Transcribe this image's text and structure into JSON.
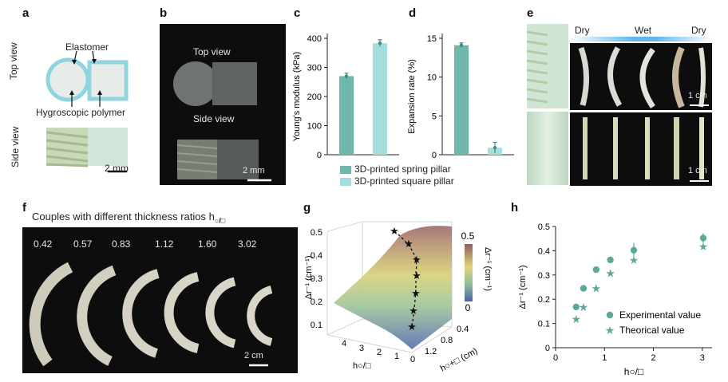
{
  "panels": {
    "a": "a",
    "b": "b",
    "c": "c",
    "d": "d",
    "e": "e",
    "f": "f",
    "g": "g",
    "h": "h"
  },
  "panel_a": {
    "elastomer": "Elastomer",
    "hygroscopic": "Hygroscopic polymer",
    "top_view": "Top view",
    "side_view": "Side view",
    "scale": "2 mm"
  },
  "panel_b": {
    "top_view": "Top view",
    "side_view": "Side view",
    "scale": "2 mm"
  },
  "panel_e": {
    "dry1": "Dry",
    "wet": "Wet",
    "dry2": "Dry",
    "scale_top": "1 cm",
    "scale_bottom": "1 cm"
  },
  "panel_f": {
    "title": "Couples with different thickness ratios h",
    "subscript": "○/□",
    "ratios": [
      "0.42",
      "0.57",
      "0.83",
      "1.12",
      "1.60",
      "3.02"
    ],
    "scale": "2 cm"
  },
  "legend_cd": {
    "spring": "3D-printed spring pillar",
    "square": "3D-printed square pillar"
  },
  "colors": {
    "spring": "#6fb6ac",
    "square": "#a6dcdb",
    "wet": "#5fb8ea",
    "teal": "#5ea89b"
  },
  "chart_data": [
    {
      "id": "c",
      "type": "bar",
      "categories": [
        "3D-printed spring pillar",
        "3D-printed square pillar"
      ],
      "values": [
        270,
        383
      ],
      "errors": [
        10,
        12
      ],
      "ylabel": "Young's modulus (kPa)",
      "ylim": [
        0,
        400
      ],
      "yticks": [
        "0",
        "100",
        "200",
        "300",
        "400"
      ]
    },
    {
      "id": "d",
      "type": "bar",
      "categories": [
        "3D-printed spring pillar",
        "3D-printed square pillar"
      ],
      "values": [
        14.1,
        0.9
      ],
      "errors": [
        0.3,
        0.7
      ],
      "ylabel": "Expansion rate (%)",
      "ylim": [
        0,
        15
      ],
      "yticks": [
        "0",
        "5",
        "10",
        "15"
      ]
    },
    {
      "id": "g",
      "type": "surface",
      "zlabel": "Δr⁻¹ (cm⁻¹)",
      "zticks": [
        "0.1",
        "0.2",
        "0.3",
        "0.4",
        "0.5"
      ],
      "xlabel": "h○/□",
      "xticks": [
        "4",
        "3",
        "2",
        "1",
        "0"
      ],
      "ylabel": "h○+□ (cm)",
      "yticks": [
        "0.4",
        "0.8",
        "1.2"
      ],
      "colorbar_label": "Δr⁻¹ (cm⁻¹)",
      "colorbar_ticks": [
        "0.5",
        "0"
      ]
    },
    {
      "id": "h",
      "type": "scatter",
      "xlabel": "h○/□",
      "ylabel": "Δr⁻¹ (cm⁻¹)",
      "xlim": [
        0,
        3.2
      ],
      "ylim": [
        0,
        0.5
      ],
      "xticks": [
        "0",
        "1",
        "2",
        "3"
      ],
      "yticks": [
        "0",
        "0.1",
        "0.2",
        "0.3",
        "0.4",
        "0.5"
      ],
      "series": [
        {
          "name": "Experimental value",
          "marker": "circle",
          "x": [
            0.42,
            0.57,
            0.83,
            1.12,
            1.6,
            3.02
          ],
          "y": [
            0.168,
            0.245,
            0.322,
            0.362,
            0.402,
            0.452
          ],
          "err": [
            0.008,
            0.008,
            0.01,
            0.012,
            0.03,
            0.02
          ]
        },
        {
          "name": "Theorical value",
          "marker": "star",
          "x": [
            0.42,
            0.57,
            0.83,
            1.12,
            1.6,
            3.02
          ],
          "y": [
            0.118,
            0.168,
            0.245,
            0.308,
            0.362,
            0.418
          ]
        }
      ]
    }
  ]
}
